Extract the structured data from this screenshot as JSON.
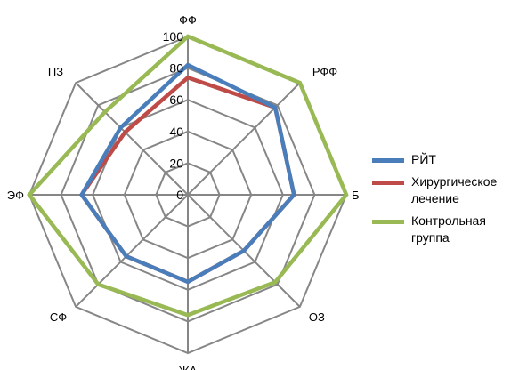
{
  "chart_data": {
    "type": "radar",
    "categories": [
      "ФФ",
      "РФФ",
      "Б",
      "ОЗ",
      "ЖА",
      "СФ",
      "ЭФ",
      "ПЗ"
    ],
    "rlim": [
      0,
      100
    ],
    "ticks": [
      0,
      20,
      40,
      60,
      80,
      100
    ],
    "grid": true,
    "legend_position": "right",
    "series": [
      {
        "name": "РЙТ",
        "color": "#4a7ebb",
        "values": [
          82,
          78,
          67,
          50,
          55,
          55,
          67,
          60
        ]
      },
      {
        "name": "Хирургическое лечение",
        "color": "#be4b48",
        "values": [
          74,
          78,
          67,
          50,
          55,
          55,
          67,
          56
        ]
      },
      {
        "name": "Контрольная группа",
        "color": "#98b954",
        "values": [
          100,
          100,
          100,
          78,
          76,
          80,
          100,
          74
        ]
      }
    ]
  },
  "legend": {
    "items": [
      "РЙТ",
      "Хирургическое лечение",
      "Контрольная группа"
    ]
  }
}
